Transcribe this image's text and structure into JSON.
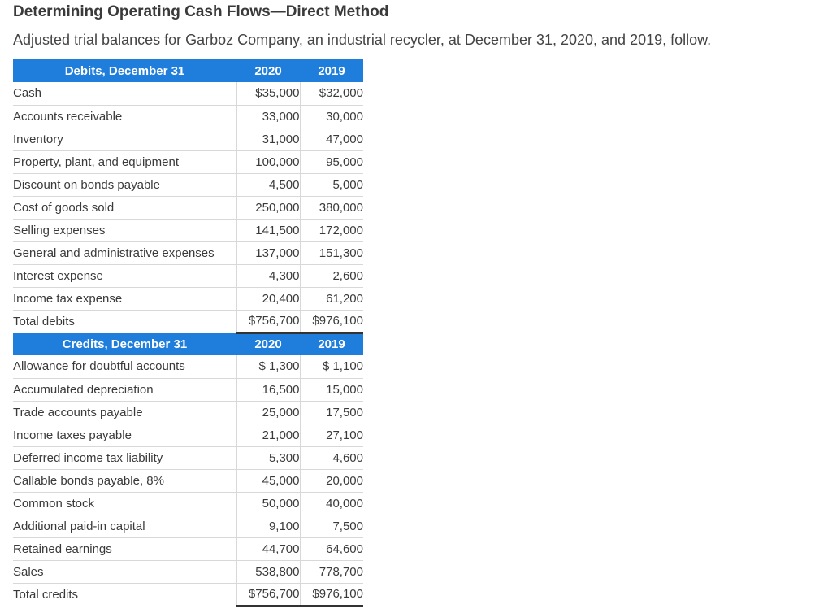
{
  "title": "Determining Operating Cash Flows—Direct Method",
  "intro": "Adjusted trial balances for Garboz Company, an industrial recycler, at December 31, 2020, and 2019, follow.",
  "debits": {
    "header": "Debits, December 31",
    "year1": "2020",
    "year2": "2019",
    "rows": [
      {
        "label": "Cash",
        "v1": "$35,000",
        "v2": "$32,000"
      },
      {
        "label": "Accounts receivable",
        "v1": "33,000",
        "v2": "30,000"
      },
      {
        "label": "Inventory",
        "v1": "31,000",
        "v2": "47,000"
      },
      {
        "label": "Property, plant, and equipment",
        "v1": "100,000",
        "v2": "95,000"
      },
      {
        "label": "Discount on bonds payable",
        "v1": "4,500",
        "v2": "5,000"
      },
      {
        "label": "Cost of goods sold",
        "v1": "250,000",
        "v2": "380,000"
      },
      {
        "label": "Selling expenses",
        "v1": "141,500",
        "v2": "172,000"
      },
      {
        "label": "General and administrative expenses",
        "v1": "137,000",
        "v2": "151,300"
      },
      {
        "label": "Interest expense",
        "v1": "4,300",
        "v2": "2,600"
      },
      {
        "label": "Income tax expense",
        "v1": "20,400",
        "v2": "61,200"
      }
    ],
    "total": {
      "label": "Total debits",
      "v1": "$756,700",
      "v2": "$976,100"
    }
  },
  "credits": {
    "header": "Credits, December 31",
    "year1": "2020",
    "year2": "2019",
    "rows": [
      {
        "label": "Allowance for doubtful accounts",
        "v1": "$ 1,300",
        "v2": "$ 1,100"
      },
      {
        "label": "Accumulated depreciation",
        "v1": "16,500",
        "v2": "15,000"
      },
      {
        "label": "Trade accounts payable",
        "v1": "25,000",
        "v2": "17,500"
      },
      {
        "label": "Income taxes payable",
        "v1": "21,000",
        "v2": "27,100"
      },
      {
        "label": "Deferred income tax liability",
        "v1": "5,300",
        "v2": "4,600"
      },
      {
        "label": "Callable bonds payable, 8%",
        "v1": "45,000",
        "v2": "20,000"
      },
      {
        "label": "Common stock",
        "v1": "50,000",
        "v2": "40,000"
      },
      {
        "label": "Additional paid-in capital",
        "v1": "9,100",
        "v2": "7,500"
      },
      {
        "label": "Retained earnings",
        "v1": "44,700",
        "v2": "64,600"
      },
      {
        "label": "Sales",
        "v1": "538,800",
        "v2": "778,700"
      }
    ],
    "total": {
      "label": "Total credits",
      "v1": "$756,700",
      "v2": "$976,100"
    }
  },
  "colors": {
    "header_bg": "#1f7ddb",
    "header_text": "#ffffff"
  }
}
